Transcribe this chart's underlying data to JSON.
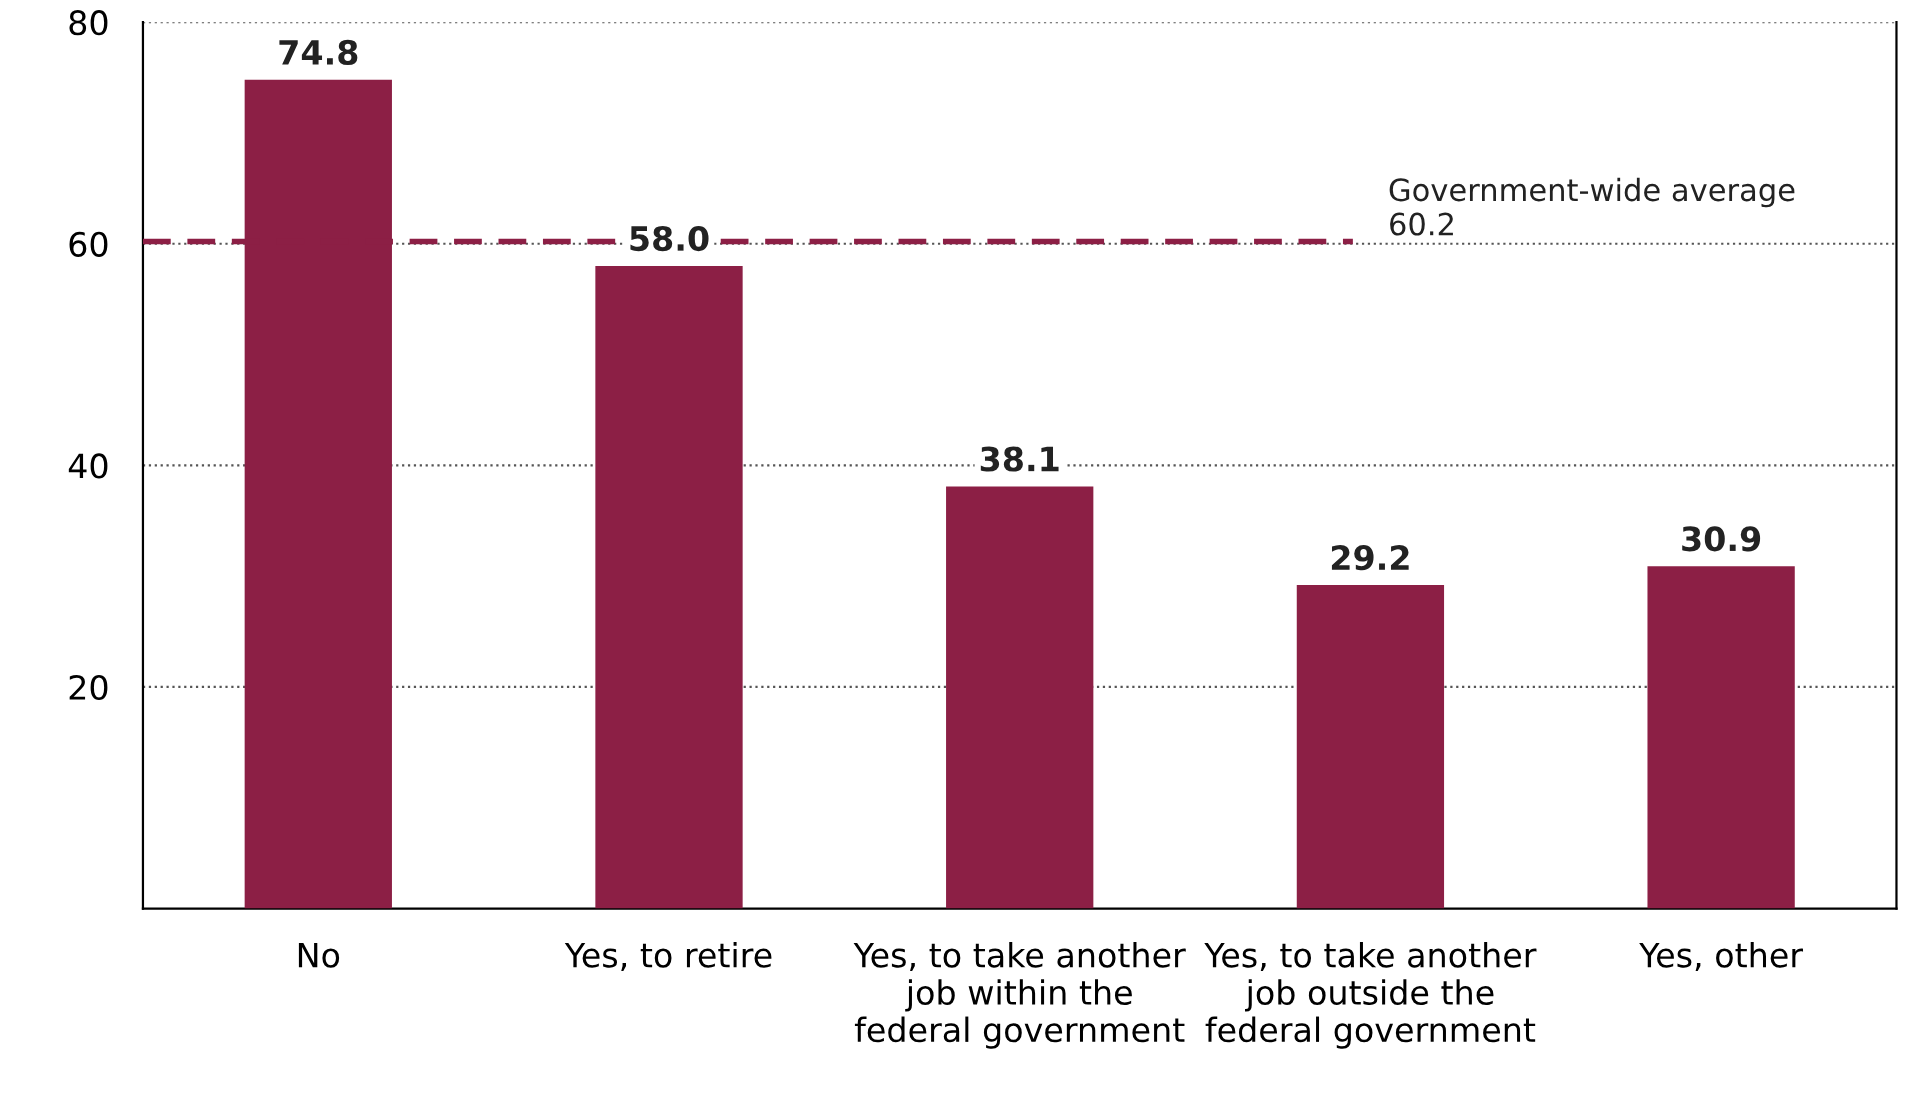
{
  "chart_data": {
    "type": "bar",
    "categories": [
      "No",
      "Yes, to retire",
      "Yes, to take another job within the federal government",
      "Yes, to take another job outside the federal government",
      "Yes, other"
    ],
    "values": [
      74.8,
      58.0,
      38.1,
      29.2,
      30.9
    ],
    "value_labels": [
      "74.8",
      "58.0",
      "38.1",
      "29.2",
      "30.9"
    ],
    "color": "#8c1f45",
    "ylim": [
      0,
      80
    ],
    "yticks": [
      20,
      40,
      60,
      80
    ],
    "grid": "y",
    "ref_lines": [
      {
        "axis": "y",
        "value": 60.2,
        "label": "Government-wide average\n60.2",
        "color": "#8c1f45",
        "line_style": "dashed"
      }
    ]
  }
}
